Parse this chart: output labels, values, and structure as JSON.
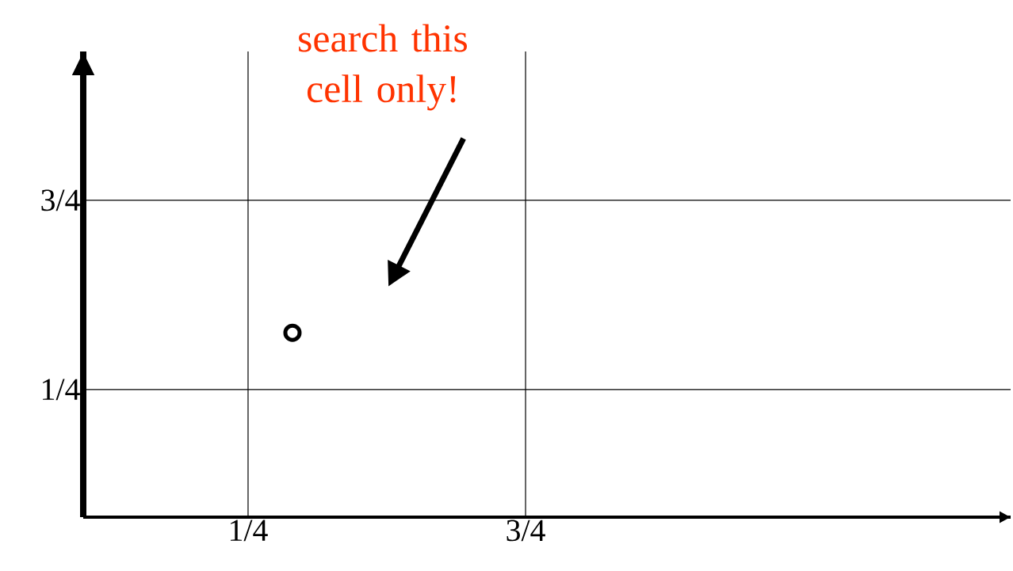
{
  "chart_data": {
    "type": "scatter",
    "x": [
      0.33
    ],
    "values": [
      0.4
    ],
    "color": "#000000",
    "marker": "circle",
    "xlim": [
      -0.047,
      1.624
    ],
    "ylim": [
      -0.087,
      1.143
    ],
    "xticks": [
      {
        "value": 0.25,
        "label": "1/4"
      },
      {
        "value": 0.75,
        "label": "3/4"
      }
    ],
    "yticks": [
      {
        "value": 0.25,
        "label": "1/4"
      },
      {
        "value": 0.75,
        "label": "3/4"
      }
    ],
    "grid": true,
    "annotations": [
      "search this cell only!"
    ]
  }
}
